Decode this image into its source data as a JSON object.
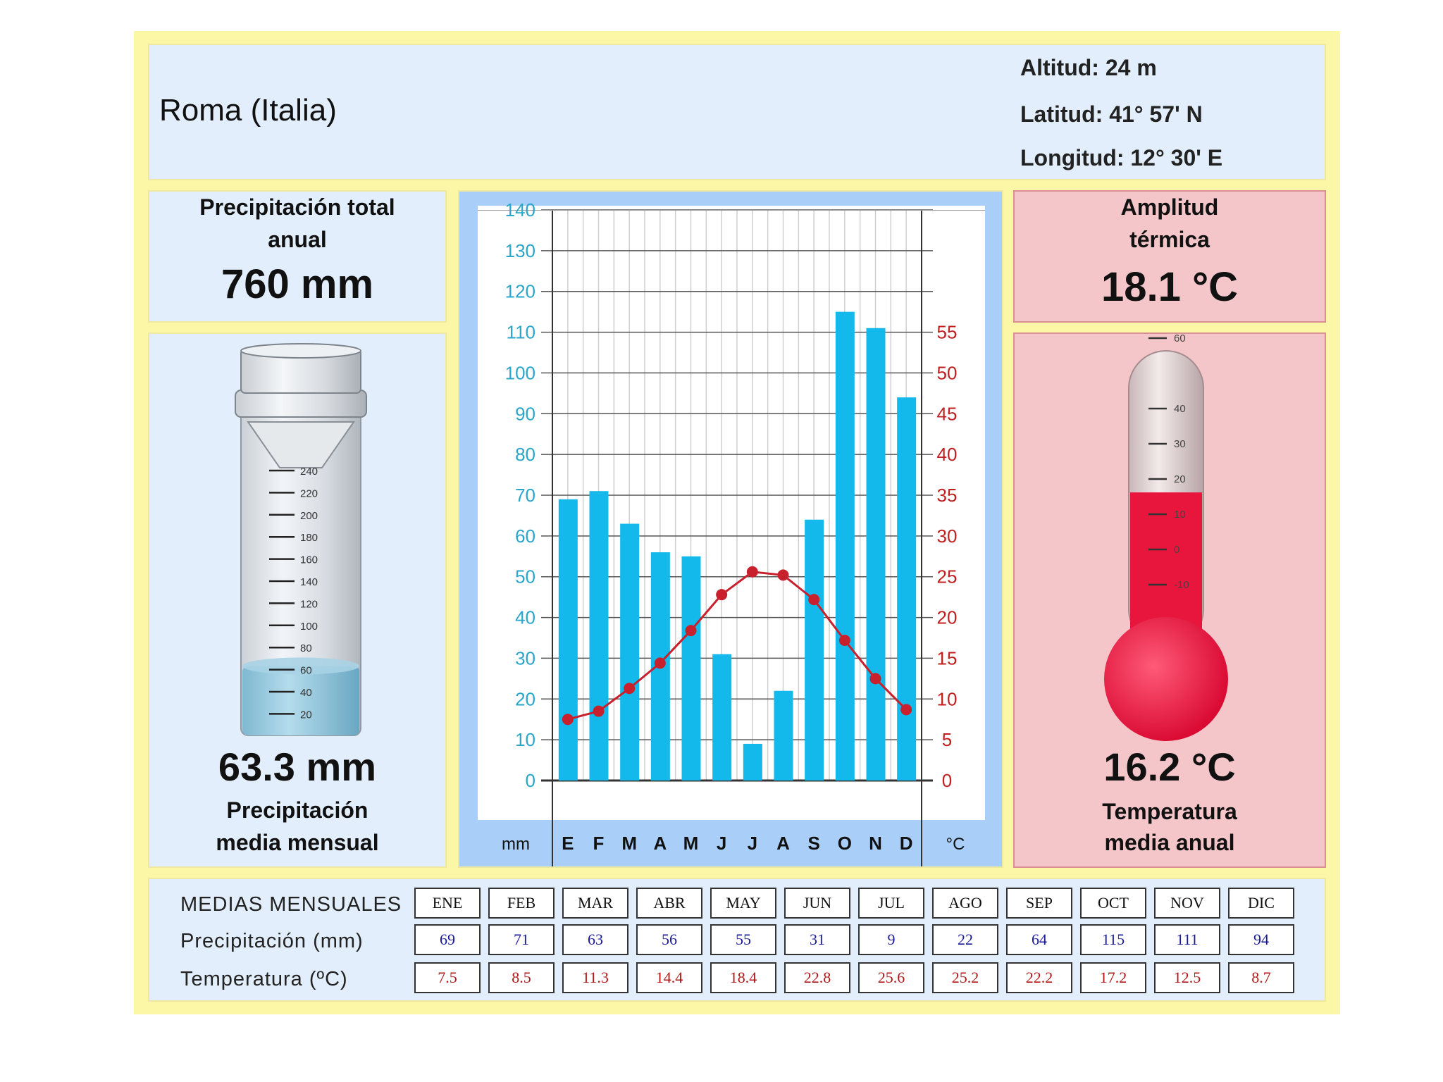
{
  "station": {
    "name": "Roma (Italia)",
    "altitude": "Altitud: 24 m",
    "latitude": "Latitud: 41° 57' N",
    "longitude": "Longitud:  12° 30' E"
  },
  "precip_total": {
    "label_line1": "Precipitación total",
    "label_line2": "anual",
    "value": "760 mm"
  },
  "precip_mean": {
    "value": "63.3 mm",
    "label_line1": "Precipitación",
    "label_line2": "media mensual",
    "level_mm": 63.3
  },
  "amplitude": {
    "label_line1": "Amplitud",
    "label_line2": "térmica",
    "value": "18.1 °C"
  },
  "temp_mean": {
    "value": "16.2 °C",
    "label_line1": "Temperatura",
    "label_line2": "media anual",
    "level_c": 16.2
  },
  "cylinder_scale": [
    "240",
    "220",
    "200",
    "180",
    "160",
    "140",
    "120",
    "100",
    "80",
    "60",
    "40",
    "20"
  ],
  "thermometer_scale": [
    "60",
    "40",
    "30",
    "20",
    "10",
    "0",
    "-10"
  ],
  "colors": {
    "bars": "#12b9ea",
    "temp_line": "#c8202c",
    "mm_axis": "#2aa6cc",
    "c_axis": "#c02020",
    "water": "#8fc6dd",
    "mercury": "#e8163c"
  },
  "chart_data": {
    "type": "bar+line",
    "categories": [
      "E",
      "F",
      "M",
      "A",
      "M",
      "J",
      "J",
      "A",
      "S",
      "O",
      "N",
      "D"
    ],
    "series": [
      {
        "values": [
          69,
          71,
          63,
          56,
          55,
          31,
          9,
          22,
          64,
          115,
          111,
          94
        ],
        "axis": "left"
      },
      {
        "values": [
          7.5,
          8.5,
          11.3,
          14.4,
          18.4,
          22.8,
          25.6,
          25.2,
          22.2,
          17.2,
          12.5,
          8.7
        ],
        "axis": "right"
      }
    ],
    "y_left": {
      "ticks": [
        "0",
        "10",
        "20",
        "30",
        "40",
        "50",
        "60",
        "70",
        "80",
        "90",
        "100",
        "110",
        "120",
        "130",
        "140"
      ],
      "unit": "mm",
      "ylim": [
        0,
        140
      ]
    },
    "y_right": {
      "ticks": [
        "0",
        "5",
        "10",
        "15",
        "20",
        "25",
        "30",
        "35",
        "40",
        "45",
        "50",
        "55"
      ],
      "unit": "°C",
      "ylim": [
        0,
        70
      ]
    },
    "grid": true
  },
  "table": {
    "title": "MEDIAS MENSUALES",
    "precip_label": "Precipitación (mm)",
    "temp_label": "Temperatura (ºC)",
    "months": [
      "ENE",
      "FEB",
      "MAR",
      "ABR",
      "MAY",
      "JUN",
      "JUL",
      "AGO",
      "SEP",
      "OCT",
      "NOV",
      "DIC"
    ],
    "precip": [
      "69",
      "71",
      "63",
      "56",
      "55",
      "31",
      "9",
      "22",
      "64",
      "115",
      "111",
      "94"
    ],
    "temp": [
      "7.5",
      "8.5",
      "11.3",
      "14.4",
      "18.4",
      "22.8",
      "25.6",
      "25.2",
      "22.2",
      "17.2",
      "12.5",
      "8.7"
    ]
  }
}
